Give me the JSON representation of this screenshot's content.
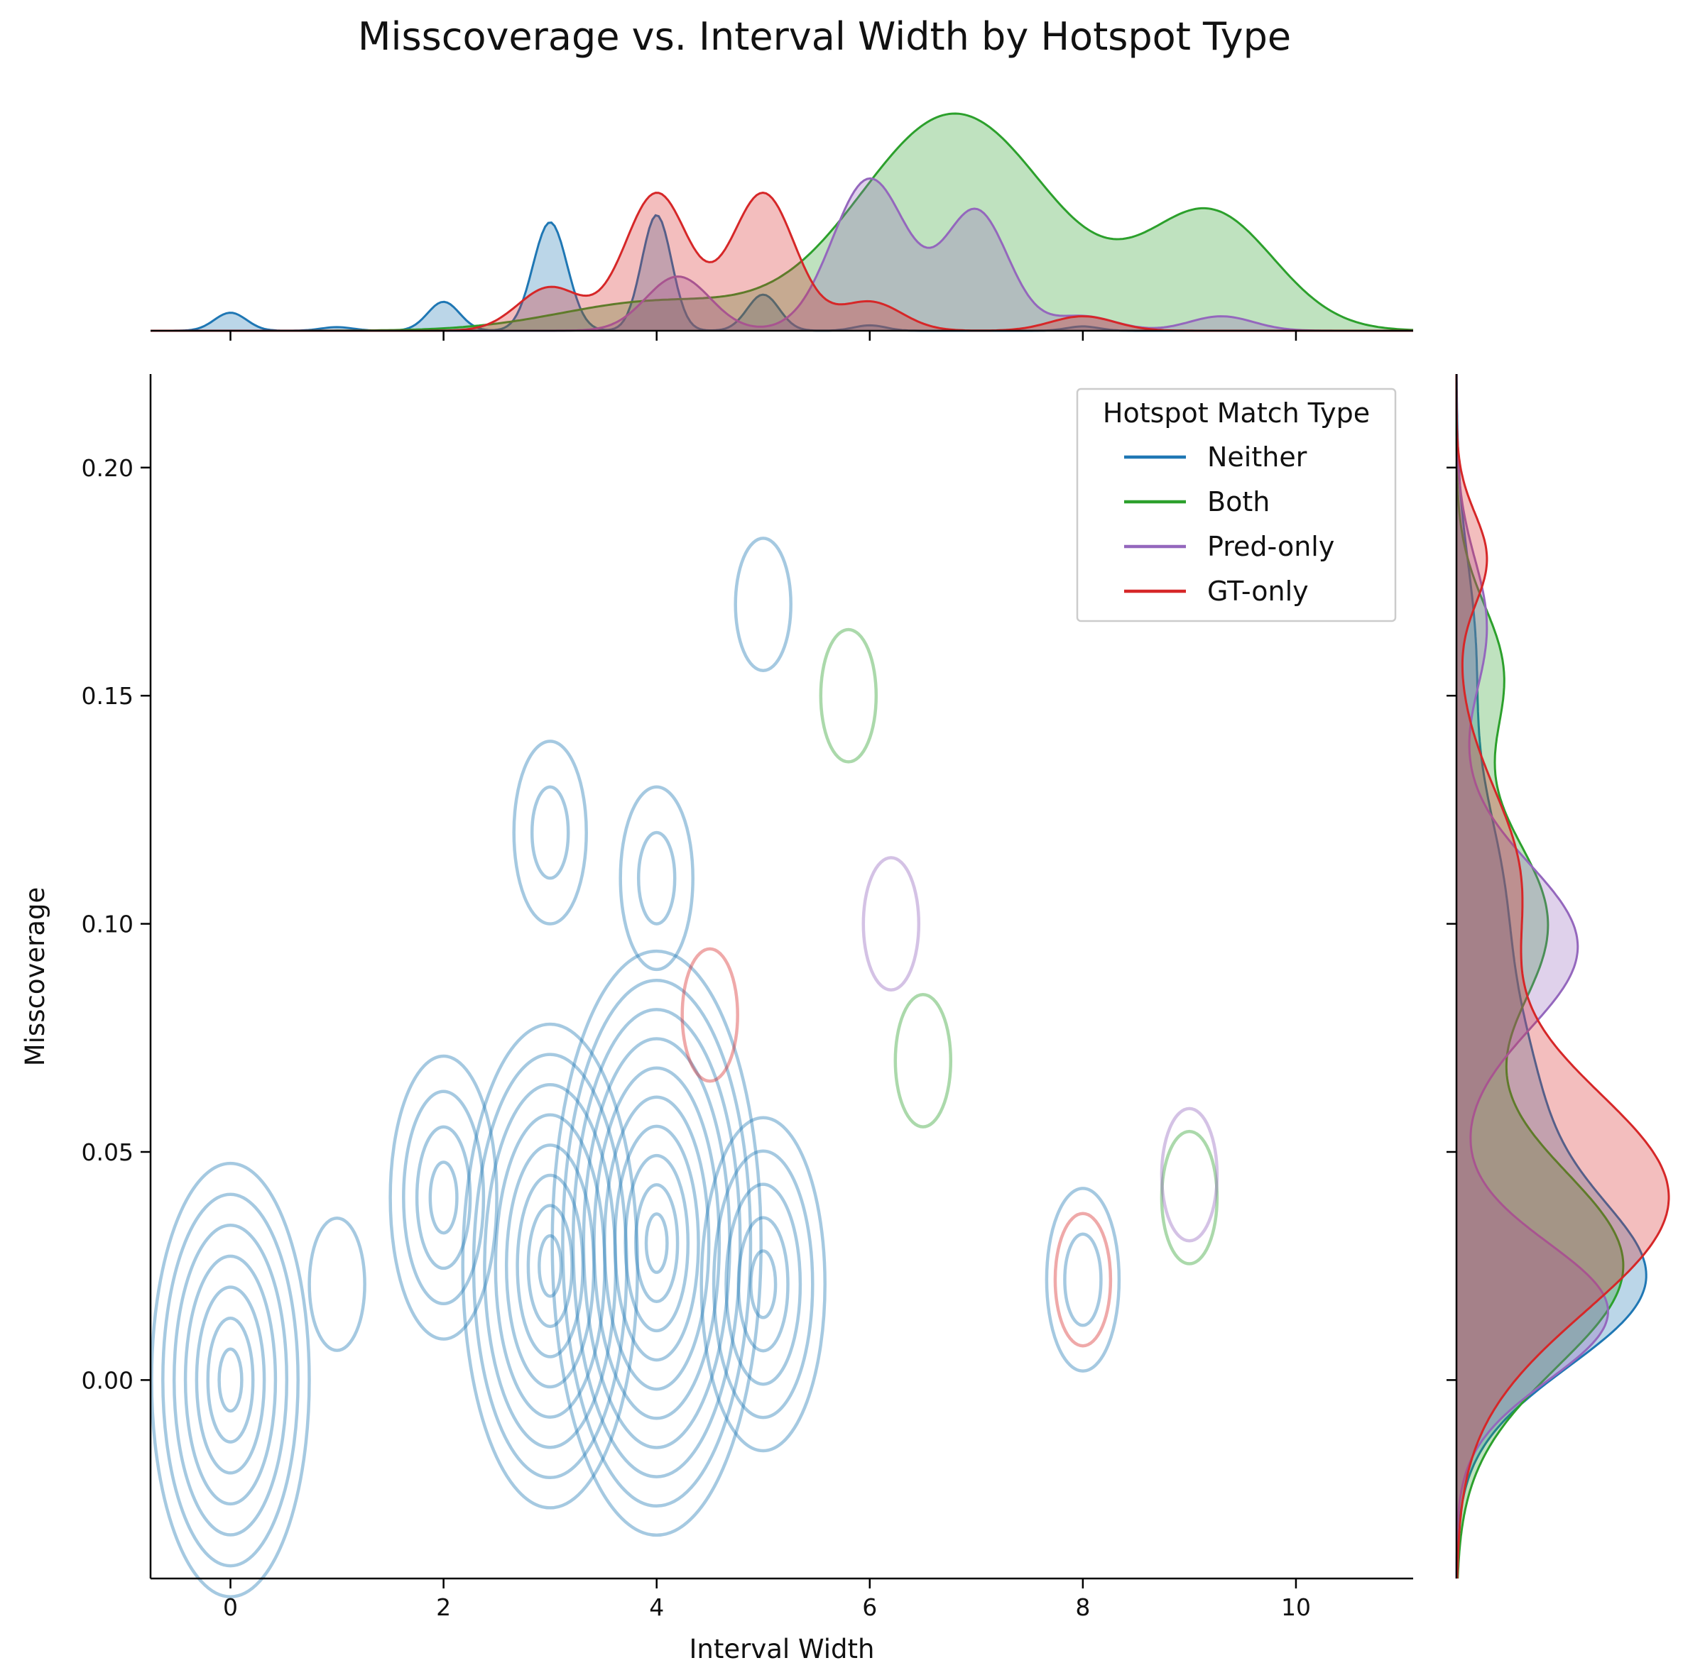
{
  "chart_data": {
    "type": "kde-jointplot",
    "title": "Misscoverage vs. Interval Width by Hotspot Type",
    "xlabel": "Interval Width",
    "ylabel": "Misscoverage",
    "xlim": [
      -0.75,
      11.1
    ],
    "ylim": [
      -0.0435,
      0.2205
    ],
    "x_ticks": [
      0,
      2,
      4,
      6,
      8,
      10
    ],
    "y_ticks": [
      0.0,
      0.05,
      0.1,
      0.15,
      0.2
    ],
    "x_tick_labels": [
      "0",
      "2",
      "4",
      "6",
      "8",
      "10"
    ],
    "y_tick_labels": [
      "0.00",
      "0.05",
      "0.10",
      "0.15",
      "0.20"
    ],
    "legend": {
      "title": "Hotspot Match Type",
      "placement": "upper-right",
      "entries": [
        {
          "label": "Neither",
          "color": "#1f77b4"
        },
        {
          "label": "Both",
          "color": "#2ca02c"
        },
        {
          "label": "Pred-only",
          "color": "#9467bd"
        },
        {
          "label": "GT-only",
          "color": "#d62728"
        }
      ]
    },
    "series": [
      {
        "name": "Neither",
        "color": "#1f77b4",
        "contour_levels": 10,
        "contour_alpha": 0.4,
        "joint_peaks": [
          {
            "x": 0,
            "y": 0.0,
            "levels": 7
          },
          {
            "x": 3,
            "y": 0.025,
            "levels": 8
          },
          {
            "x": 4,
            "y": 0.03,
            "levels": 10
          },
          {
            "x": 5,
            "y": 0.021,
            "levels": 5
          },
          {
            "x": 2,
            "y": 0.04,
            "levels": 4
          },
          {
            "x": 3,
            "y": 0.12,
            "levels": 2
          },
          {
            "x": 4,
            "y": 0.11,
            "levels": 2
          },
          {
            "x": 8,
            "y": 0.022,
            "levels": 2
          },
          {
            "x": 1,
            "y": 0.021,
            "levels": 1
          },
          {
            "x": 5,
            "y": 0.17,
            "levels": 1
          }
        ],
        "x_marginal": [
          {
            "center": 0,
            "width": 0.15,
            "weight": 0.05
          },
          {
            "center": 1,
            "width": 0.15,
            "weight": 0.01
          },
          {
            "center": 2,
            "width": 0.15,
            "weight": 0.08
          },
          {
            "center": 3,
            "width": 0.16,
            "weight": 0.3
          },
          {
            "center": 4,
            "width": 0.14,
            "weight": 0.32
          },
          {
            "center": 5,
            "width": 0.15,
            "weight": 0.1
          },
          {
            "center": 6,
            "width": 0.15,
            "weight": 0.015
          },
          {
            "center": 8,
            "width": 0.15,
            "weight": 0.012
          }
        ],
        "y_marginal": [
          {
            "center": 0.02,
            "width": 0.018,
            "weight": 0.55
          },
          {
            "center": 0.06,
            "width": 0.025,
            "weight": 0.25
          },
          {
            "center": 0.11,
            "width": 0.02,
            "weight": 0.12
          },
          {
            "center": 0.16,
            "width": 0.02,
            "weight": 0.06
          }
        ]
      },
      {
        "name": "Both",
        "color": "#2ca02c",
        "contour_levels": 1,
        "contour_alpha": 0.4,
        "joint_peaks": [
          {
            "x": 6.5,
            "y": 0.07,
            "levels": 1
          },
          {
            "x": 5.8,
            "y": 0.15,
            "levels": 1
          },
          {
            "x": 9.0,
            "y": 0.04,
            "levels": 1
          }
        ],
        "x_marginal": [
          {
            "center": 4,
            "width": 0.9,
            "weight": 0.08
          },
          {
            "center": 6.8,
            "width": 0.9,
            "weight": 0.6
          },
          {
            "center": 9.2,
            "width": 0.6,
            "weight": 0.32
          }
        ],
        "y_marginal": [
          {
            "center": 0.025,
            "width": 0.022,
            "weight": 0.55
          },
          {
            "center": 0.1,
            "width": 0.02,
            "weight": 0.3
          },
          {
            "center": 0.155,
            "width": 0.015,
            "weight": 0.15
          }
        ]
      },
      {
        "name": "Pred-only",
        "color": "#9467bd",
        "contour_levels": 1,
        "contour_alpha": 0.4,
        "joint_peaks": [
          {
            "x": 6.2,
            "y": 0.1,
            "levels": 1
          },
          {
            "x": 9.0,
            "y": 0.045,
            "levels": 1
          }
        ],
        "x_marginal": [
          {
            "center": 4.2,
            "width": 0.3,
            "weight": 0.15
          },
          {
            "center": 6.0,
            "width": 0.35,
            "weight": 0.42
          },
          {
            "center": 7.0,
            "width": 0.3,
            "weight": 0.33
          },
          {
            "center": 8.0,
            "width": 0.3,
            "weight": 0.04
          },
          {
            "center": 9.3,
            "width": 0.3,
            "weight": 0.04
          }
        ],
        "y_marginal": [
          {
            "center": 0.015,
            "width": 0.015,
            "weight": 0.5
          },
          {
            "center": 0.095,
            "width": 0.018,
            "weight": 0.4
          },
          {
            "center": 0.165,
            "width": 0.015,
            "weight": 0.1
          }
        ]
      },
      {
        "name": "GT-only",
        "color": "#d62728",
        "contour_levels": 1,
        "contour_alpha": 0.4,
        "joint_peaks": [
          {
            "x": 4.5,
            "y": 0.08,
            "levels": 1
          },
          {
            "x": 8.0,
            "y": 0.022,
            "levels": 1
          }
        ],
        "x_marginal": [
          {
            "center": 3.0,
            "width": 0.3,
            "weight": 0.12
          },
          {
            "center": 4.0,
            "width": 0.3,
            "weight": 0.38
          },
          {
            "center": 5.0,
            "width": 0.3,
            "weight": 0.38
          },
          {
            "center": 6.0,
            "width": 0.3,
            "weight": 0.08
          },
          {
            "center": 8.0,
            "width": 0.3,
            "weight": 0.04
          }
        ],
        "y_marginal": [
          {
            "center": 0.04,
            "width": 0.025,
            "weight": 0.7
          },
          {
            "center": 0.11,
            "width": 0.02,
            "weight": 0.2
          },
          {
            "center": 0.18,
            "width": 0.01,
            "weight": 0.1
          }
        ]
      }
    ]
  }
}
